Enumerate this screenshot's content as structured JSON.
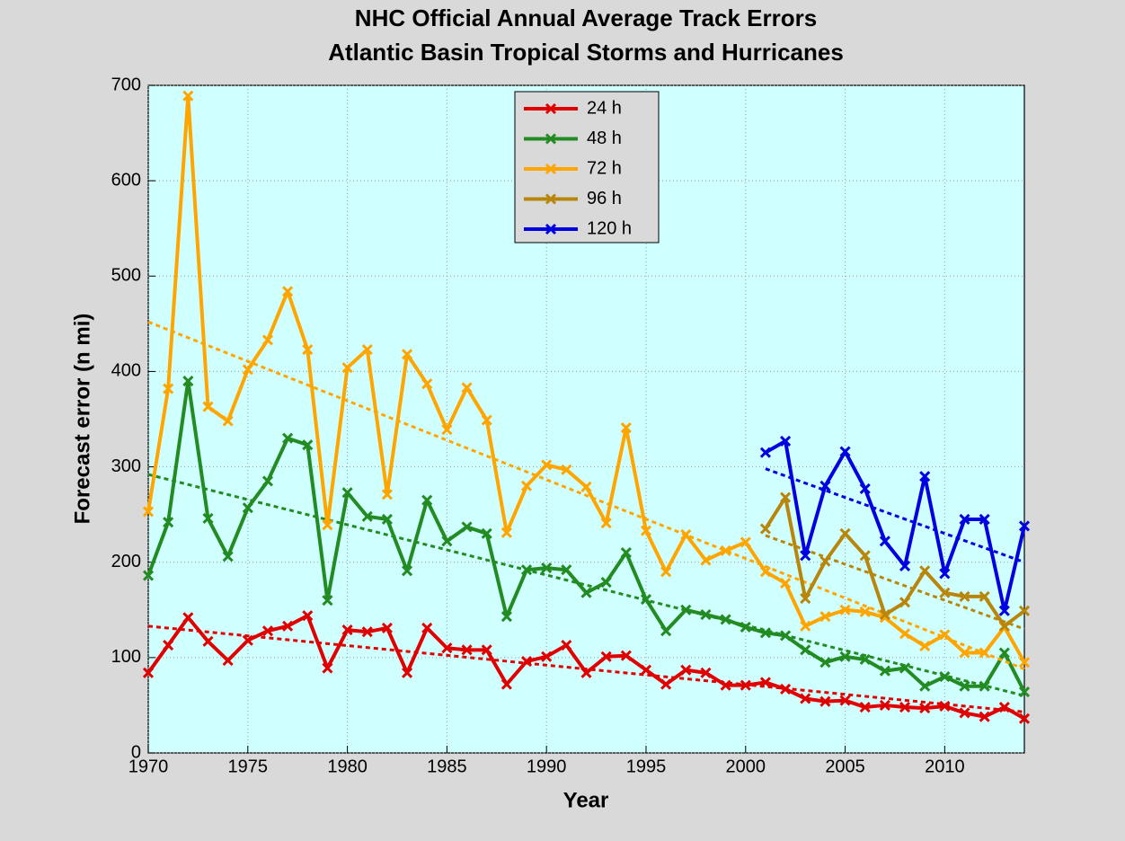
{
  "chart_data": {
    "type": "line",
    "title": "NHC Official Annual Average Track Errors",
    "subtitle": "Atlantic Basin Tropical Storms and Hurricanes",
    "x_label": "Year",
    "y_label": "Forecast error (n mi)",
    "x": [
      1970,
      1971,
      1972,
      1973,
      1974,
      1975,
      1976,
      1977,
      1978,
      1979,
      1980,
      1981,
      1982,
      1983,
      1984,
      1985,
      1986,
      1987,
      1988,
      1989,
      1990,
      1991,
      1992,
      1993,
      1994,
      1995,
      1996,
      1997,
      1998,
      1999,
      2000,
      2001,
      2002,
      2003,
      2004,
      2005,
      2006,
      2007,
      2008,
      2009,
      2010,
      2011,
      2012,
      2013,
      2014
    ],
    "series": [
      {
        "name": "24 h",
        "color": "#e00000",
        "values": [
          84,
          113,
          142,
          117,
          97,
          118,
          128,
          133,
          144,
          89,
          129,
          127,
          131,
          84,
          131,
          110,
          108,
          108,
          72,
          96,
          101,
          113,
          84,
          101,
          102,
          87,
          72,
          87,
          84,
          71,
          71,
          74,
          67,
          57,
          54,
          55,
          48,
          50,
          48,
          47,
          49,
          42,
          38,
          48,
          36
        ],
        "trend": [
          133,
          43
        ]
      },
      {
        "name": "48 h",
        "color": "#228b22",
        "values": [
          186,
          242,
          390,
          246,
          206,
          257,
          285,
          330,
          323,
          160,
          273,
          248,
          245,
          191,
          265,
          222,
          237,
          230,
          143,
          192,
          194,
          192,
          168,
          179,
          210,
          161,
          128,
          150,
          145,
          140,
          132,
          126,
          123,
          108,
          95,
          101,
          98,
          86,
          89,
          70,
          80,
          70,
          70,
          105,
          64
        ],
        "trend": [
          292,
          60
        ]
      },
      {
        "name": "72 h",
        "color": "#ffa500",
        "values": [
          253,
          382,
          689,
          363,
          348,
          402,
          433,
          484,
          423,
          239,
          404,
          423,
          271,
          418,
          387,
          339,
          383,
          349,
          231,
          280,
          302,
          297,
          279,
          241,
          341,
          233,
          190,
          229,
          202,
          212,
          221,
          190,
          178,
          133,
          143,
          150,
          148,
          142,
          125,
          112,
          124,
          105,
          105,
          132,
          95
        ],
        "trend": [
          452,
          88
        ]
      },
      {
        "name": "96 h",
        "color": "#b8860b",
        "values": [
          null,
          null,
          null,
          null,
          null,
          null,
          null,
          null,
          null,
          null,
          null,
          null,
          null,
          null,
          null,
          null,
          null,
          null,
          null,
          null,
          null,
          null,
          null,
          null,
          null,
          null,
          null,
          null,
          null,
          null,
          null,
          235,
          268,
          162,
          201,
          230,
          207,
          145,
          158,
          191,
          168,
          164,
          164,
          133,
          149
        ],
        "trend": [
          228,
          130
        ]
      },
      {
        "name": "120 h",
        "color": "#0000e0",
        "values": [
          null,
          null,
          null,
          null,
          null,
          null,
          null,
          null,
          null,
          null,
          null,
          null,
          null,
          null,
          null,
          null,
          null,
          null,
          null,
          null,
          null,
          null,
          null,
          null,
          null,
          null,
          null,
          null,
          null,
          null,
          null,
          315,
          327,
          207,
          280,
          316,
          277,
          222,
          196,
          290,
          188,
          245,
          245,
          149,
          238
        ],
        "trend": [
          298,
          200
        ]
      }
    ],
    "xlim": [
      1970,
      2014
    ],
    "xticks": [
      1970,
      1975,
      1980,
      1985,
      1990,
      1995,
      2000,
      2005,
      2010
    ],
    "ylim": [
      0,
      700
    ],
    "yticks": [
      0,
      100,
      200,
      300,
      400,
      500,
      600,
      700
    ],
    "grid": true,
    "legend": "top"
  }
}
